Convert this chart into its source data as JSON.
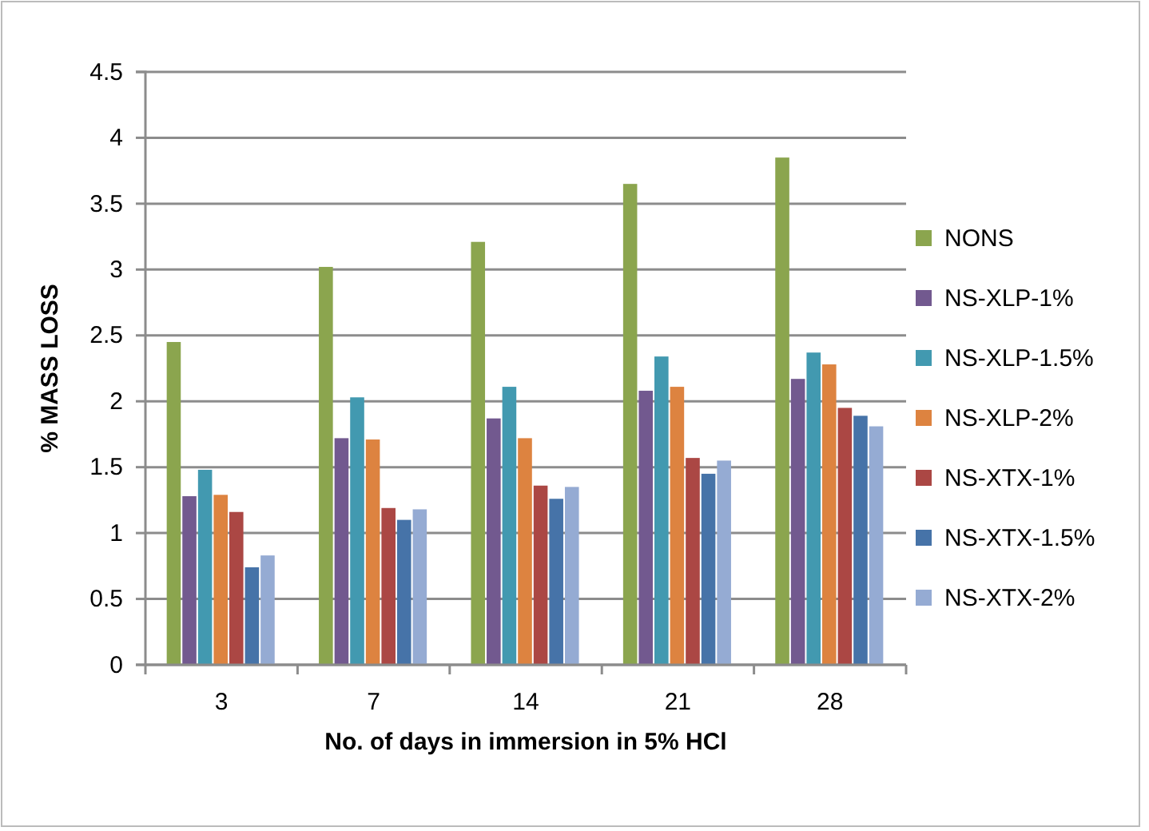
{
  "chart_data": {
    "type": "bar",
    "xlabel": "No. of days in immersion in 5% HCl",
    "ylabel": "% MASS LOSS",
    "categories": [
      "3",
      "7",
      "14",
      "21",
      "28"
    ],
    "series": [
      {
        "name": "NONS",
        "color": "#8ba54e",
        "values": [
          2.45,
          3.02,
          3.21,
          3.65,
          3.85
        ]
      },
      {
        "name": "NS-XLP-1%",
        "color": "#72598f",
        "values": [
          1.28,
          1.72,
          1.87,
          2.08,
          2.17
        ]
      },
      {
        "name": "NS-XLP-1.5%",
        "color": "#4299b0",
        "values": [
          1.48,
          2.03,
          2.11,
          2.34,
          2.37
        ]
      },
      {
        "name": "NS-XLP-2%",
        "color": "#dd8340",
        "values": [
          1.29,
          1.71,
          1.72,
          2.11,
          2.28
        ]
      },
      {
        "name": "NS-XTX-1%",
        "color": "#ab4744",
        "values": [
          1.16,
          1.19,
          1.36,
          1.57,
          1.95
        ]
      },
      {
        "name": "NS-XTX-1.5%",
        "color": "#4673a8",
        "values": [
          0.74,
          1.1,
          1.26,
          1.45,
          1.89
        ]
      },
      {
        "name": "NS-XTX-2%",
        "color": "#95abd3",
        "values": [
          0.83,
          1.18,
          1.35,
          1.55,
          1.81
        ]
      }
    ],
    "ylim": [
      0,
      4.5
    ],
    "yticks": [
      0,
      0.5,
      1,
      1.5,
      2,
      2.5,
      3,
      3.5,
      4,
      4.5
    ],
    "grid": "y",
    "legend": "right"
  }
}
